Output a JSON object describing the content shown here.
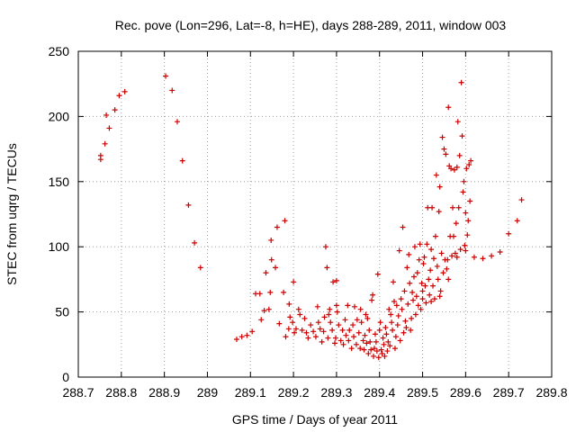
{
  "chart_data": {
    "type": "scatter",
    "title": "Rec. pove (Lon=296, Lat=-8, h=HE), days 288-289, 2011, window 003",
    "xlabel": "GPS time / Days of year 2011",
    "ylabel": "STEC from uqrg / TECUs",
    "xlim": [
      288.7,
      289.8
    ],
    "ylim": [
      0,
      250
    ],
    "x_ticks": [
      "288.7",
      "288.8",
      "288.9",
      "289",
      "289.1",
      "289.2",
      "289.3",
      "289.4",
      "289.5",
      "289.6",
      "289.7",
      "289.8"
    ],
    "y_ticks": [
      "0",
      "50",
      "100",
      "150",
      "200",
      "250"
    ],
    "grid": true,
    "marker": "+",
    "color": "#cc0000",
    "points": [
      [
        288.752,
        170
      ],
      [
        288.752,
        167
      ],
      [
        288.762,
        179
      ],
      [
        288.765,
        201
      ],
      [
        288.772,
        191
      ],
      [
        288.785,
        205
      ],
      [
        288.795,
        216
      ],
      [
        288.808,
        219
      ],
      [
        288.903,
        231
      ],
      [
        288.918,
        220
      ],
      [
        288.93,
        196
      ],
      [
        288.942,
        166
      ],
      [
        288.956,
        132
      ],
      [
        288.97,
        103
      ],
      [
        288.984,
        84
      ],
      [
        289.068,
        29
      ],
      [
        289.08,
        31
      ],
      [
        289.092,
        32
      ],
      [
        289.104,
        35
      ],
      [
        289.112,
        64
      ],
      [
        289.122,
        64
      ],
      [
        289.125,
        44
      ],
      [
        289.132,
        51
      ],
      [
        289.136,
        80
      ],
      [
        289.143,
        52
      ],
      [
        289.146,
        65
      ],
      [
        289.148,
        105
      ],
      [
        289.149,
        90
      ],
      [
        289.158,
        84
      ],
      [
        289.162,
        115
      ],
      [
        289.167,
        41
      ],
      [
        289.177,
        65
      ],
      [
        289.18,
        120
      ],
      [
        289.182,
        31
      ],
      [
        289.189,
        37
      ],
      [
        289.19,
        56
      ],
      [
        289.192,
        46
      ],
      [
        289.198,
        42
      ],
      [
        289.2,
        73
      ],
      [
        289.202,
        34
      ],
      [
        289.206,
        37
      ],
      [
        289.212,
        52
      ],
      [
        289.215,
        48
      ],
      [
        289.22,
        36
      ],
      [
        289.226,
        45
      ],
      [
        289.23,
        34
      ],
      [
        289.234,
        30
      ],
      [
        289.24,
        40
      ],
      [
        289.246,
        35
      ],
      [
        289.252,
        31
      ],
      [
        289.256,
        54
      ],
      [
        289.258,
        42
      ],
      [
        289.262,
        37
      ],
      [
        289.266,
        27
      ],
      [
        289.27,
        35
      ],
      [
        289.272,
        46
      ],
      [
        289.275,
        100
      ],
      [
        289.278,
        84
      ],
      [
        289.28,
        30
      ],
      [
        289.282,
        48
      ],
      [
        289.284,
        52
      ],
      [
        289.286,
        42
      ],
      [
        289.29,
        36
      ],
      [
        289.292,
        73
      ],
      [
        289.296,
        26
      ],
      [
        289.298,
        30
      ],
      [
        289.3,
        74
      ],
      [
        289.3,
        55
      ],
      [
        289.302,
        50
      ],
      [
        289.305,
        40
      ],
      [
        289.31,
        28
      ],
      [
        289.314,
        36
      ],
      [
        289.316,
        25
      ],
      [
        289.32,
        44
      ],
      [
        289.322,
        32
      ],
      [
        289.326,
        55
      ],
      [
        289.328,
        28
      ],
      [
        289.33,
        36
      ],
      [
        289.335,
        22
      ],
      [
        289.338,
        40
      ],
      [
        289.34,
        31
      ],
      [
        289.342,
        54
      ],
      [
        289.346,
        25
      ],
      [
        289.348,
        44
      ],
      [
        289.352,
        34
      ],
      [
        289.355,
        22
      ],
      [
        289.356,
        52
      ],
      [
        289.358,
        42
      ],
      [
        289.362,
        28
      ],
      [
        289.364,
        21
      ],
      [
        289.366,
        32
      ],
      [
        289.368,
        48
      ],
      [
        289.37,
        26
      ],
      [
        289.372,
        45
      ],
      [
        289.374,
        18
      ],
      [
        289.376,
        36
      ],
      [
        289.378,
        27
      ],
      [
        289.38,
        21
      ],
      [
        289.382,
        59
      ],
      [
        289.384,
        63
      ],
      [
        289.386,
        16
      ],
      [
        289.388,
        22
      ],
      [
        289.39,
        33
      ],
      [
        289.392,
        27
      ],
      [
        289.394,
        20
      ],
      [
        289.396,
        79
      ],
      [
        289.398,
        15
      ],
      [
        289.4,
        36
      ],
      [
        289.402,
        42
      ],
      [
        289.404,
        21
      ],
      [
        289.406,
        18
      ],
      [
        289.408,
        30
      ],
      [
        289.41,
        25
      ],
      [
        289.412,
        16
      ],
      [
        289.414,
        38
      ],
      [
        289.416,
        33
      ],
      [
        289.418,
        20
      ],
      [
        289.42,
        27
      ],
      [
        289.422,
        52
      ],
      [
        289.424,
        24
      ],
      [
        289.426,
        48
      ],
      [
        289.428,
        42
      ],
      [
        289.43,
        36
      ],
      [
        289.432,
        73
      ],
      [
        289.434,
        58
      ],
      [
        289.436,
        22
      ],
      [
        289.438,
        31
      ],
      [
        289.44,
        55
      ],
      [
        289.442,
        40
      ],
      [
        289.444,
        47
      ],
      [
        289.446,
        97
      ],
      [
        289.448,
        28
      ],
      [
        289.45,
        60
      ],
      [
        289.452,
        52
      ],
      [
        289.454,
        115
      ],
      [
        289.456,
        34
      ],
      [
        289.458,
        66
      ],
      [
        289.46,
        43
      ],
      [
        289.462,
        38
      ],
      [
        289.464,
        84
      ],
      [
        289.466,
        56
      ],
      [
        289.468,
        94
      ],
      [
        289.47,
        72
      ],
      [
        289.472,
        36
      ],
      [
        289.474,
        45
      ],
      [
        289.476,
        65
      ],
      [
        289.478,
        59
      ],
      [
        289.48,
        77
      ],
      [
        289.482,
        100
      ],
      [
        289.484,
        48
      ],
      [
        289.486,
        62
      ],
      [
        289.488,
        80
      ],
      [
        289.49,
        55
      ],
      [
        289.492,
        90
      ],
      [
        289.494,
        102
      ],
      [
        289.496,
        52
      ],
      [
        289.498,
        72
      ],
      [
        289.5,
        60
      ],
      [
        289.502,
        87
      ],
      [
        289.504,
        92
      ],
      [
        289.506,
        70
      ],
      [
        289.508,
        57
      ],
      [
        289.51,
        102
      ],
      [
        289.512,
        130
      ],
      [
        289.514,
        75
      ],
      [
        289.516,
        63
      ],
      [
        289.518,
        82
      ],
      [
        289.52,
        98
      ],
      [
        289.522,
        130
      ],
      [
        289.524,
        70
      ],
      [
        289.526,
        91
      ],
      [
        289.528,
        60
      ],
      [
        289.53,
        108
      ],
      [
        289.532,
        155
      ],
      [
        289.534,
        85
      ],
      [
        289.536,
        75
      ],
      [
        289.538,
        127
      ],
      [
        289.54,
        146
      ],
      [
        289.542,
        66
      ],
      [
        289.544,
        95
      ],
      [
        289.546,
        184
      ],
      [
        289.548,
        80
      ],
      [
        289.55,
        175
      ],
      [
        289.552,
        90
      ],
      [
        289.554,
        171
      ],
      [
        289.556,
        83
      ],
      [
        289.558,
        90
      ],
      [
        289.56,
        207
      ],
      [
        289.562,
        162
      ],
      [
        289.564,
        108
      ],
      [
        289.566,
        160
      ],
      [
        289.568,
        93
      ],
      [
        289.57,
        130
      ],
      [
        289.572,
        108
      ],
      [
        289.574,
        159
      ],
      [
        289.576,
        95
      ],
      [
        289.578,
        118
      ],
      [
        289.58,
        161
      ],
      [
        289.582,
        196
      ],
      [
        289.584,
        130
      ],
      [
        289.586,
        170
      ],
      [
        289.588,
        98
      ],
      [
        289.59,
        226
      ],
      [
        289.592,
        185
      ],
      [
        289.594,
        142
      ],
      [
        289.596,
        150
      ],
      [
        289.598,
        101
      ],
      [
        289.6,
        126
      ],
      [
        289.602,
        160
      ],
      [
        289.604,
        109
      ],
      [
        289.606,
        120
      ],
      [
        289.608,
        163
      ],
      [
        289.61,
        135
      ],
      [
        289.612,
        166
      ],
      [
        289.5,
        66
      ],
      [
        289.52,
        58
      ],
      [
        289.54,
        62
      ],
      [
        289.56,
        75
      ],
      [
        289.58,
        92
      ],
      [
        289.6,
        97
      ],
      [
        289.62,
        92
      ],
      [
        289.64,
        91
      ],
      [
        289.66,
        93
      ],
      [
        289.68,
        96
      ],
      [
        289.7,
        110
      ],
      [
        289.72,
        120
      ],
      [
        289.73,
        136
      ]
    ]
  }
}
